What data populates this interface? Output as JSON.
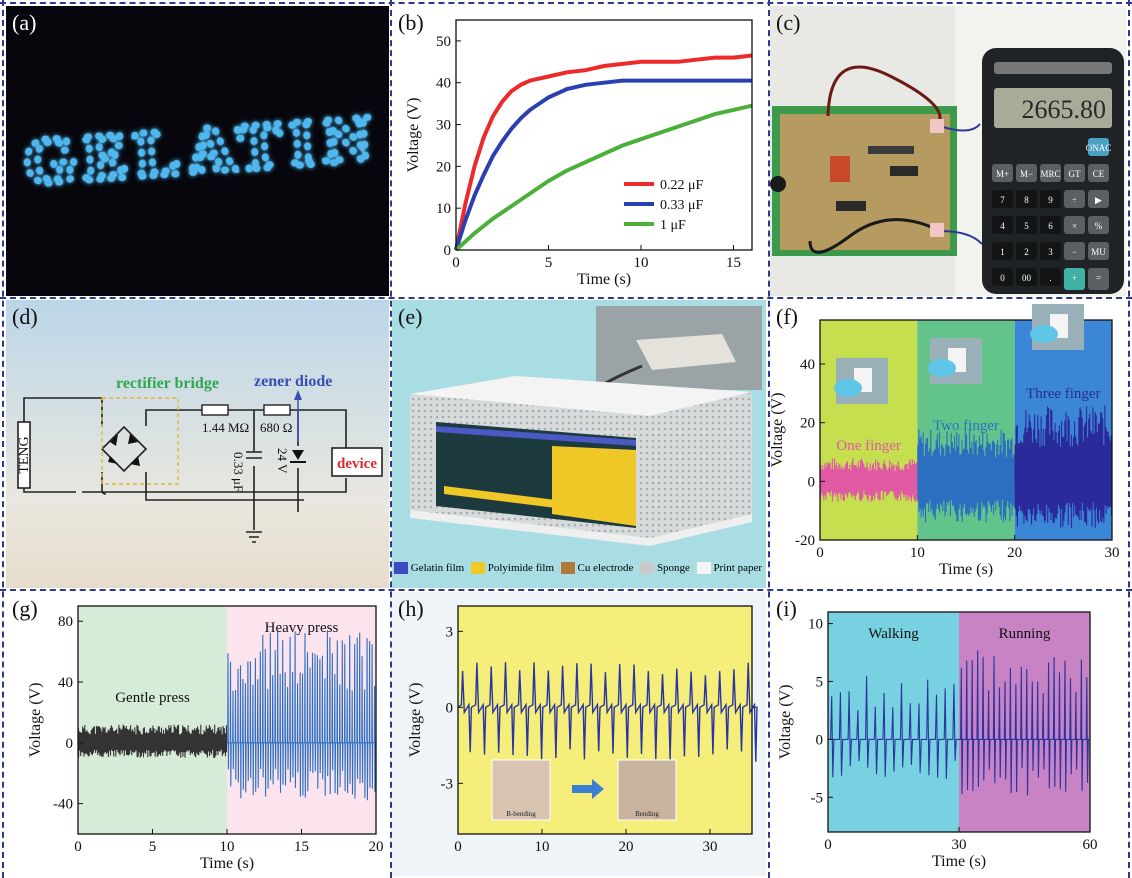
{
  "panels": {
    "a": {
      "label": "(a)",
      "display_text": "GELATIN"
    },
    "b": {
      "label": "(b)"
    },
    "c": {
      "label": "(c)",
      "lcd_text": "2665.80",
      "keys": [
        "ONAC",
        "M+",
        "M−",
        "MRC",
        "GT",
        "CE",
        "7",
        "8",
        "9",
        "÷",
        "▶",
        "4",
        "5",
        "6",
        "×",
        "%",
        "1",
        "2",
        "3",
        "−",
        "MU",
        "0",
        "00",
        ".",
        "+",
        "="
      ]
    },
    "d": {
      "label": "(d)",
      "rectifier": "rectifier bridge",
      "zener": "zener diode",
      "teng": "TENG",
      "device": "device",
      "r1": "1.44 MΩ",
      "r2": "680 Ω",
      "cap": "0.33 μF",
      "vz": "24 V"
    },
    "e": {
      "label": "(e)",
      "legend": [
        "Gelatin film",
        "Polyimide film",
        "Cu electrode",
        "Sponge",
        "Print paper"
      ]
    },
    "f": {
      "label": "(f)",
      "regions": [
        "One finger",
        "Two finger",
        "Three finger"
      ]
    },
    "g": {
      "label": "(g)",
      "regions": [
        "Gentle press",
        "Heavy press"
      ]
    },
    "h": {
      "label": "(h)",
      "inset_labels": [
        "B-bending",
        "Bending"
      ]
    },
    "i": {
      "label": "(i)",
      "regions": [
        "Walking",
        "Running"
      ]
    }
  },
  "chart_data": [
    {
      "panel": "b",
      "type": "line",
      "xlabel": "Time (s)",
      "ylabel": "Voltage (V)",
      "xlim": [
        0,
        16
      ],
      "ylim": [
        0,
        55
      ],
      "xticks": [
        0,
        5,
        10,
        15
      ],
      "yticks": [
        0,
        10,
        20,
        30,
        40,
        50
      ],
      "legend_position": "bottom-right",
      "series": [
        {
          "name": "0.22 μF",
          "color": "#ec2a2a",
          "x": [
            0,
            0.5,
            1,
            1.5,
            2,
            2.5,
            3,
            3.5,
            4,
            5,
            6,
            7,
            8,
            9,
            10,
            11,
            12,
            13,
            14,
            15,
            16
          ],
          "y": [
            0,
            11,
            20,
            27,
            32,
            35.5,
            38,
            39.5,
            40.5,
            41.5,
            42.5,
            43,
            44,
            44.5,
            45,
            45,
            45,
            45.5,
            46,
            46,
            46.5
          ]
        },
        {
          "name": "0.33 μF",
          "color": "#2a3fb0",
          "x": [
            0,
            0.5,
            1,
            1.5,
            2,
            2.5,
            3,
            3.5,
            4,
            5,
            6,
            7,
            8,
            9,
            10,
            11,
            12,
            13,
            14,
            15,
            16
          ],
          "y": [
            0,
            7,
            13,
            18,
            22.5,
            26,
            29,
            31.5,
            33.5,
            36.5,
            38.5,
            39.5,
            40,
            40.5,
            40.5,
            40.5,
            40.5,
            40.5,
            40.5,
            40.5,
            40.5
          ]
        },
        {
          "name": "1  μF",
          "color": "#4caf3c",
          "x": [
            0,
            1,
            2,
            3,
            4,
            5,
            6,
            7,
            8,
            9,
            10,
            11,
            12,
            13,
            14,
            15,
            16
          ],
          "y": [
            0,
            4,
            7.5,
            10.5,
            13.5,
            16.5,
            19,
            21,
            23,
            25,
            26.5,
            28,
            29.5,
            31,
            32.5,
            33.5,
            34.5
          ]
        }
      ]
    },
    {
      "panel": "f",
      "type": "line",
      "xlabel": "Time (s)",
      "ylabel": "Voltage (V)",
      "xlim": [
        0,
        30
      ],
      "ylim": [
        -20,
        55
      ],
      "xticks": [
        0,
        10,
        20,
        30
      ],
      "yticks": [
        -20,
        0,
        20,
        40
      ],
      "regions": [
        {
          "label": "One finger",
          "x": [
            0,
            10
          ],
          "color": "#c6df4f",
          "signal_color": "#e05aa4",
          "amplitude": [
            8,
            7
          ],
          "spikes_per_s": 9
        },
        {
          "label": "Two finger",
          "x": [
            10,
            20
          ],
          "color": "#62c48a",
          "signal_color": "#2c6fc1",
          "amplitude": [
            18,
            14
          ],
          "spikes_per_s": 9
        },
        {
          "label": "Three finger",
          "x": [
            20,
            30
          ],
          "color": "#3b86d6",
          "signal_color": "#2a2a9a",
          "amplitude": [
            26,
            16
          ],
          "spikes_per_s": 9
        }
      ]
    },
    {
      "panel": "g",
      "type": "line",
      "xlabel": "Time (s)",
      "ylabel": "Voltage (V)",
      "xlim": [
        0,
        20
      ],
      "ylim": [
        -60,
        90
      ],
      "xticks": [
        0,
        5,
        10,
        15,
        20
      ],
      "yticks": [
        -40,
        0,
        40,
        80
      ],
      "regions": [
        {
          "label": "Gentle press",
          "x": [
            0,
            10
          ],
          "color": "#d6ecd8",
          "signal_color": "#333333",
          "amplitude": [
            12,
            10
          ],
          "spikes_per_s": 14
        },
        {
          "label": "Heavy press",
          "x": [
            10,
            20
          ],
          "color": "#fce4ee",
          "signal_color": "#2c6fc1",
          "amplitude": [
            75,
            38
          ],
          "spikes_per_s": 6
        }
      ]
    },
    {
      "panel": "h",
      "type": "line",
      "xlabel": "",
      "ylabel": "Voltage (V)",
      "xlim": [
        0,
        35
      ],
      "ylim": [
        -5,
        4
      ],
      "xticks": [
        0,
        10,
        20,
        30
      ],
      "yticks": [
        -3,
        0,
        3
      ],
      "background": "#f5ee7a",
      "series": [
        {
          "name": "",
          "color": "#2a35a0",
          "period_s": 1.7,
          "positive_peak": 1.8,
          "negative_peak": -2.2
        }
      ]
    },
    {
      "panel": "i",
      "type": "line",
      "xlabel": "Time (s)",
      "ylabel": "Voltage (V)",
      "xlim": [
        0,
        60
      ],
      "ylim": [
        -8,
        11
      ],
      "xticks": [
        0,
        30,
        60
      ],
      "yticks": [
        -5,
        0,
        5,
        10
      ],
      "regions": [
        {
          "label": "Walking",
          "x": [
            0,
            30
          ],
          "color": "#77d1e0",
          "signal_color": "#2a35a0",
          "amplitude": [
            5.5,
            3.5
          ],
          "spikes_per_s": 0.5
        },
        {
          "label": "Running",
          "x": [
            30,
            60
          ],
          "color": "#c883c4",
          "signal_color": "#2a35a0",
          "amplitude": [
            8,
            5
          ],
          "spikes_per_s": 0.8
        }
      ]
    }
  ]
}
